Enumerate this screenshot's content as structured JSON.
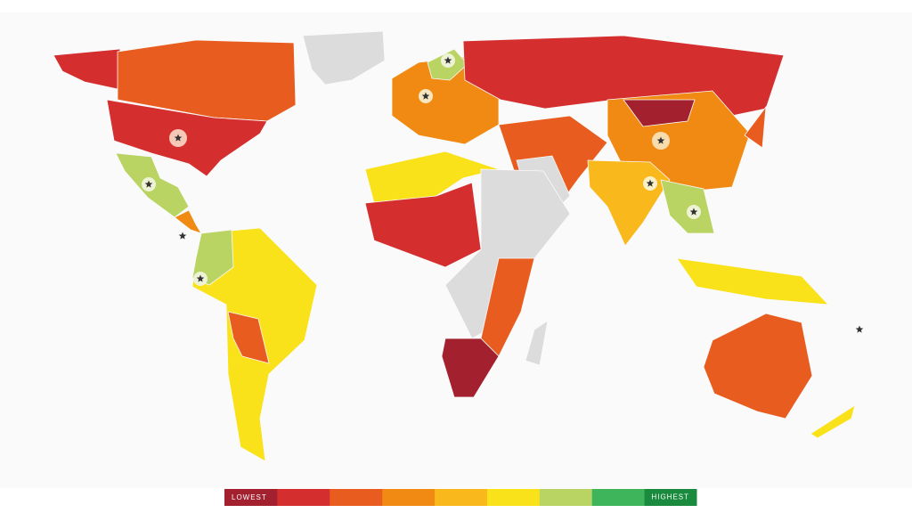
{
  "legend": {
    "low_label": "LOWEST",
    "high_label": "HIGHEST",
    "colors": [
      "#a3202f",
      "#d52e2e",
      "#e85d1f",
      "#f08a12",
      "#f9b81b",
      "#f9e21a",
      "#b9d463",
      "#3fb55b",
      "#1a8a3e"
    ]
  }
}
